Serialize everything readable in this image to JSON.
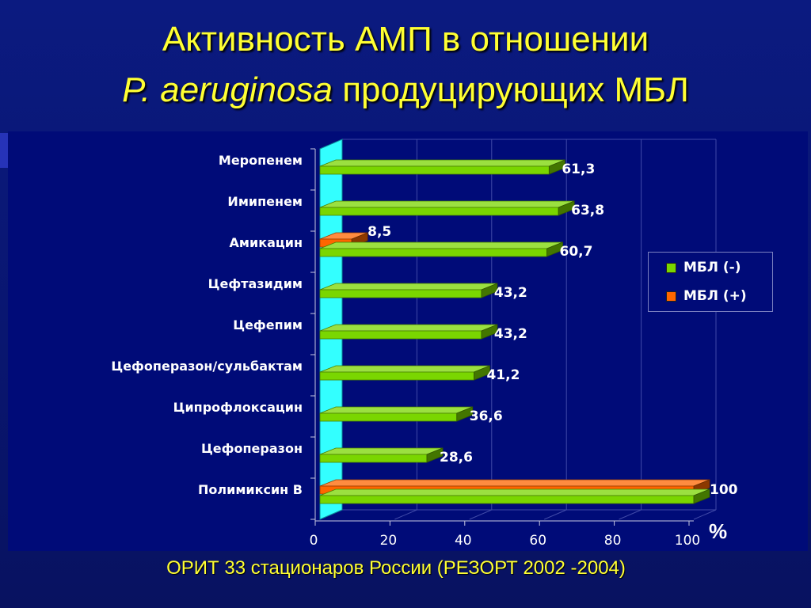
{
  "slide": {
    "title_line1": "Активность АМП в отношении",
    "title_italic": "P. aeruginosa",
    "title_rest": " продуцирующих МБЛ",
    "footnote": "ОРИТ 33 стационаров России (РЕЗОРТ 2002 -2004)",
    "unit_symbol": "%"
  },
  "colors": {
    "series_minus": "#7ad600",
    "series_plus": "#ff6600",
    "wall": "#33ffff",
    "title": "#ffff33",
    "label": "#ffffff",
    "grid": "#404aa8"
  },
  "chart_data": {
    "type": "bar",
    "orientation": "horizontal",
    "render": "3d",
    "categories": [
      "Меропенем",
      "Имипенем",
      "Амикацин",
      "Цефтазидим",
      "Цефепим",
      "Цефоперазон/сульбактам",
      "Ципрофлоксацин",
      "Цефоперазон",
      "Полимиксин В"
    ],
    "series": [
      {
        "name": "МБЛ (-)",
        "values": [
          61.3,
          63.8,
          60.7,
          43.2,
          43.2,
          41.2,
          36.6,
          28.6,
          100
        ]
      },
      {
        "name": "МБЛ (+)",
        "values": [
          null,
          null,
          8.5,
          null,
          null,
          null,
          null,
          null,
          100
        ]
      }
    ],
    "value_labels": [
      {
        "category": "Меропенем",
        "text": "61,3"
      },
      {
        "category": "Имипенем",
        "text": "63,8"
      },
      {
        "category": "Амикацин",
        "text": "8,5"
      },
      {
        "category": "Амикацин",
        "text": "60,7"
      },
      {
        "category": "Цефтазидим",
        "text": "43,2"
      },
      {
        "category": "Цефепим",
        "text": "43,2"
      },
      {
        "category": "Цефоперазон/сульбактам",
        "text": "41,2"
      },
      {
        "category": "Ципрофлоксацин",
        "text": "36,6"
      },
      {
        "category": "Цефоперазон",
        "text": "28,6"
      },
      {
        "category": "Полимиксин В",
        "text": "100"
      }
    ],
    "x_ticks": [
      "0",
      "20",
      "40",
      "60",
      "80",
      "100"
    ],
    "xlim": [
      0,
      100
    ],
    "grid": true,
    "legend_position": "right"
  }
}
